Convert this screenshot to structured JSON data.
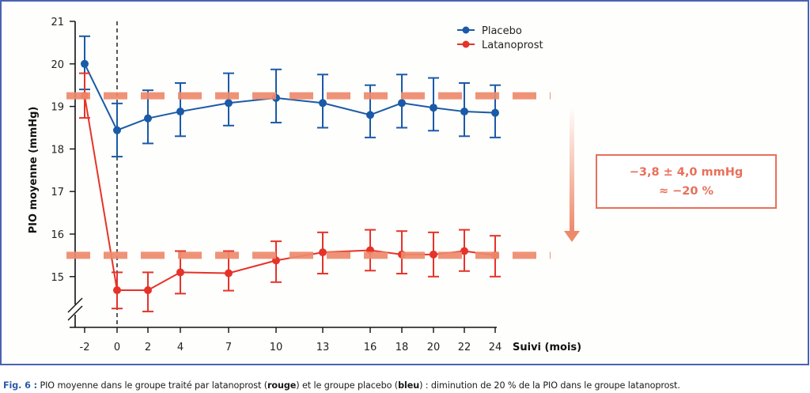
{
  "chart_data": {
    "type": "line",
    "title": "",
    "xlabel": "Suivi (mois)",
    "ylabel": "PIO moyenne (mmHg)",
    "x": [
      -2,
      0,
      2,
      4,
      7,
      10,
      13,
      16,
      18,
      20,
      22,
      24
    ],
    "x_tick_labels": [
      "-2",
      "0",
      "2",
      "4",
      "7",
      "10",
      "13",
      "16",
      "18",
      "20",
      "22",
      "24"
    ],
    "y_ticks": [
      15,
      16,
      17,
      18,
      19,
      20,
      21
    ],
    "ylim": [
      14,
      21
    ],
    "y_axis_break": true,
    "grid": false,
    "legend_position": "top-center",
    "reference_vline_x": 0,
    "series": [
      {
        "name": "Placebo",
        "color": "#1a5aa8",
        "values": [
          20.0,
          18.44,
          18.72,
          18.88,
          19.08,
          19.2,
          19.08,
          18.8,
          19.08,
          18.97,
          18.88,
          18.85
        ],
        "error_upper": [
          20.65,
          19.07,
          19.38,
          19.55,
          19.78,
          19.87,
          19.75,
          19.5,
          19.75,
          19.67,
          19.55,
          19.5
        ],
        "error_lower": [
          19.4,
          17.82,
          18.13,
          18.3,
          18.55,
          18.62,
          18.5,
          18.27,
          18.5,
          18.43,
          18.3,
          18.27
        ]
      },
      {
        "name": "Latanoprost",
        "color": "#e5332a",
        "values": [
          19.25,
          14.68,
          14.68,
          15.1,
          15.08,
          15.38,
          15.57,
          15.62,
          15.52,
          15.52,
          15.6,
          15.5
        ],
        "error_upper": [
          19.78,
          15.1,
          15.1,
          15.6,
          15.6,
          15.83,
          16.04,
          16.1,
          16.07,
          16.04,
          16.1,
          15.96
        ],
        "error_lower": [
          18.73,
          14.25,
          14.18,
          14.6,
          14.67,
          14.87,
          15.07,
          15.14,
          15.07,
          15.0,
          15.13,
          15.0
        ]
      }
    ],
    "reference_bands": [
      {
        "name": "baseline-level",
        "y": 19.25,
        "color": "#ee8a6c",
        "style": "dashed"
      },
      {
        "name": "treated-level",
        "y": 15.5,
        "color": "#ee8a6c",
        "style": "dashed"
      }
    ],
    "annotation": {
      "line1": "−3,8 ± 4,0 mmHg",
      "line2": "≈ −20 %",
      "color": "#e8705a",
      "arrow": "down"
    }
  },
  "caption": {
    "fig_label": "Fig. 6 :",
    "part1": " PIO moyenne dans le groupe traité par latanoprost (",
    "bold1": "rouge",
    "part2": ") et le groupe placebo (",
    "bold2": "bleu",
    "part3": ") : diminution de 20 % de la PIO dans le groupe latanoprost."
  }
}
